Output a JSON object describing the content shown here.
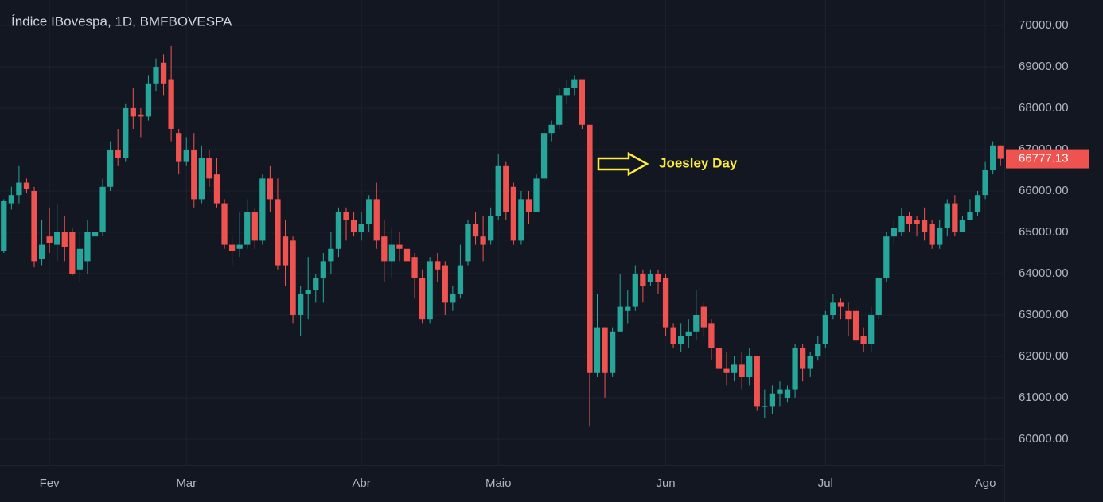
{
  "chart_data": {
    "type": "candlestick",
    "title": "Índice IBovespa, 1D, BMFBOVESPA",
    "annotation": "Joesley Day",
    "up_color": "#26a69a",
    "down_color": "#ef5350",
    "grid": true,
    "categories": [
      null,
      null,
      null,
      null,
      null,
      null,
      "Fev",
      null,
      null,
      null,
      null,
      null,
      null,
      null,
      null,
      null,
      null,
      null,
      null,
      null,
      null,
      null,
      null,
      null,
      "Mar",
      null,
      null,
      null,
      null,
      null,
      null,
      null,
      null,
      null,
      null,
      null,
      null,
      null,
      null,
      null,
      null,
      null,
      null,
      null,
      null,
      null,
      null,
      "Abr",
      null,
      null,
      null,
      null,
      null,
      null,
      null,
      null,
      null,
      null,
      null,
      null,
      null,
      null,
      null,
      null,
      null,
      "Maio",
      null,
      null,
      null,
      null,
      null,
      null,
      null,
      null,
      null,
      null,
      null,
      null,
      null,
      null,
      null,
      null,
      null,
      null,
      null,
      null,
      null,
      "Jun",
      null,
      null,
      null,
      null,
      null,
      null,
      null,
      null,
      null,
      null,
      null,
      null,
      null,
      null,
      null,
      null,
      null,
      null,
      null,
      null,
      "Jul",
      null,
      null,
      null,
      null,
      null,
      null,
      null,
      null,
      null,
      null,
      null,
      null,
      null,
      null,
      null,
      null,
      null,
      null,
      null,
      null,
      "Ago",
      null,
      null
    ],
    "open": [
      64550,
      65700,
      65900,
      66200,
      66000,
      64350,
      64900,
      64700,
      65000,
      65000,
      64100,
      64300,
      64900,
      65000,
      66100,
      67000,
      66800,
      68000,
      67850,
      67800,
      68600,
      69100,
      68700,
      67400,
      66700,
      67000,
      65800,
      66800,
      66400,
      65700,
      64700,
      64600,
      64700,
      65500,
      64800,
      66300,
      65800,
      64900,
      64800,
      63000,
      63500,
      63600,
      63900,
      64300,
      64600,
      65500,
      65300,
      65000,
      65200,
      65800,
      64900,
      64300,
      64700,
      64600,
      64400,
      63900,
      62900,
      64300,
      64200,
      63300,
      63500,
      64300,
      65200,
      64900,
      64800,
      65400,
      66600,
      66100,
      64800,
      65800,
      65500,
      66300,
      67400,
      67600,
      68300,
      68500,
      68700,
      67600,
      61600,
      62700,
      61600,
      62600,
      63100,
      63200,
      64000,
      63800,
      64000,
      63900,
      62700,
      62300,
      62500,
      62600,
      63200,
      62800,
      62200,
      61700,
      61600,
      61800,
      61500,
      62000,
      60800,
      60800,
      61100,
      61000,
      61200,
      62200,
      61700,
      62000,
      62300,
      63000,
      63300,
      63100,
      63100,
      62500,
      62300,
      63000,
      63900,
      64900,
      65000,
      65400,
      65300,
      65300,
      65200,
      64700,
      65100,
      65700,
      65000,
      65300,
      65500,
      65900,
      66500,
      67100
    ],
    "high": [
      65800,
      66100,
      66600,
      66300,
      66100,
      65300,
      65600,
      65700,
      65400,
      65100,
      65000,
      65300,
      65300,
      66300,
      67200,
      67500,
      68100,
      68500,
      68000,
      68800,
      69200,
      69300,
      69500,
      67500,
      67300,
      67400,
      67100,
      67000,
      66800,
      65800,
      64900,
      65500,
      65800,
      65600,
      66400,
      66600,
      66300,
      65300,
      64900,
      63700,
      64400,
      64000,
      64500,
      65000,
      65600,
      65600,
      65500,
      65500,
      65900,
      66200,
      65300,
      65100,
      65000,
      64800,
      64500,
      64100,
      64400,
      64500,
      64300,
      63700,
      64700,
      65300,
      65500,
      65400,
      65600,
      66900,
      66700,
      66200,
      66000,
      66000,
      66400,
      67500,
      67700,
      68500,
      68700,
      68800,
      68700,
      67600,
      63500,
      62700,
      62700,
      64000,
      63600,
      64200,
      64100,
      64100,
      64100,
      64000,
      62800,
      62800,
      62900,
      63600,
      63300,
      62900,
      62300,
      62100,
      62000,
      62100,
      62200,
      62000,
      61200,
      61300,
      61400,
      61300,
      62300,
      62300,
      62100,
      62500,
      63100,
      63500,
      63400,
      63300,
      63200,
      62700,
      63200,
      63900,
      65000,
      65300,
      65600,
      65500,
      65400,
      65600,
      65300,
      65300,
      65800,
      65900,
      65400,
      65800,
      66000,
      66700,
      67200,
      67100
    ],
    "low": [
      64500,
      65550,
      65700,
      65950,
      64150,
      64200,
      64500,
      64300,
      64300,
      63950,
      63800,
      64000,
      64700,
      64900,
      66000,
      66600,
      66700,
      67500,
      67300,
      67700,
      68400,
      68300,
      67200,
      66400,
      66600,
      65600,
      65700,
      66100,
      65600,
      64600,
      64200,
      64400,
      64600,
      64600,
      64700,
      65500,
      64100,
      63700,
      62800,
      62500,
      62900,
      63300,
      63300,
      64000,
      64400,
      64800,
      64900,
      64800,
      65000,
      64600,
      63800,
      63900,
      64300,
      63700,
      63400,
      62800,
      62800,
      63800,
      63000,
      63100,
      63400,
      64200,
      64700,
      64300,
      64700,
      65300,
      65300,
      64700,
      64700,
      65200,
      65500,
      66200,
      67200,
      67500,
      68100,
      68300,
      67500,
      60300,
      61500,
      61000,
      61500,
      62600,
      62800,
      63100,
      63300,
      63700,
      63500,
      62500,
      62200,
      62100,
      62200,
      62400,
      62500,
      61900,
      61400,
      61300,
      61400,
      61200,
      61300,
      60700,
      60500,
      60600,
      60800,
      60900,
      61000,
      61400,
      61500,
      61900,
      62200,
      62900,
      62900,
      62500,
      62300,
      62100,
      62100,
      62900,
      63800,
      64700,
      64900,
      65000,
      64900,
      64800,
      64600,
      64600,
      64900,
      64900,
      65000,
      65300,
      65400,
      65800,
      66400,
      66600
    ],
    "close": [
      65750,
      65900,
      66200,
      66050,
      64300,
      64700,
      64750,
      65000,
      64650,
      64000,
      64600,
      65000,
      65000,
      66100,
      67000,
      66800,
      68000,
      67800,
      67800,
      68600,
      69000,
      68600,
      67500,
      66700,
      67000,
      65800,
      66800,
      66300,
      65700,
      64700,
      64550,
      64700,
      65500,
      64800,
      66300,
      65800,
      64200,
      64200,
      63000,
      63500,
      63600,
      63900,
      64300,
      64600,
      65500,
      65300,
      65000,
      65200,
      65800,
      64800,
      64300,
      64700,
      64600,
      64300,
      63900,
      62900,
      64300,
      64100,
      63300,
      63500,
      64200,
      65200,
      64900,
      64700,
      65400,
      66600,
      65500,
      64800,
      65800,
      65500,
      66300,
      67400,
      67600,
      68300,
      68500,
      68700,
      67600,
      61600,
      62700,
      61600,
      62600,
      63200,
      63200,
      64000,
      63700,
      64000,
      63800,
      62700,
      62300,
      62500,
      62600,
      63000,
      62700,
      62200,
      61700,
      61600,
      61800,
      61500,
      62000,
      60800,
      60800,
      61100,
      61200,
      61200,
      62200,
      61700,
      62000,
      62300,
      63000,
      63300,
      63200,
      62900,
      62400,
      62300,
      63000,
      63900,
      64900,
      65100,
      65400,
      65200,
      65200,
      65000,
      64700,
      65100,
      65700,
      65000,
      65300,
      65500,
      65900,
      66500,
      67100,
      66777.13
    ],
    "ylim": [
      59365,
      70615
    ],
    "yticks": [
      {
        "value": 60000,
        "label": "60000.00"
      },
      {
        "value": 61000,
        "label": "61000.00"
      },
      {
        "value": 62000,
        "label": "62000.00"
      },
      {
        "value": 63000,
        "label": "63000.00"
      },
      {
        "value": 64000,
        "label": "64000.00"
      },
      {
        "value": 65000,
        "label": "65000.00"
      },
      {
        "value": 66000,
        "label": "66000.00"
      },
      {
        "value": 67000,
        "label": "67000.00"
      },
      {
        "value": 68000,
        "label": "68000.00"
      },
      {
        "value": 69000,
        "label": "69000.00"
      },
      {
        "value": 70000,
        "label": "70000.00"
      }
    ]
  }
}
